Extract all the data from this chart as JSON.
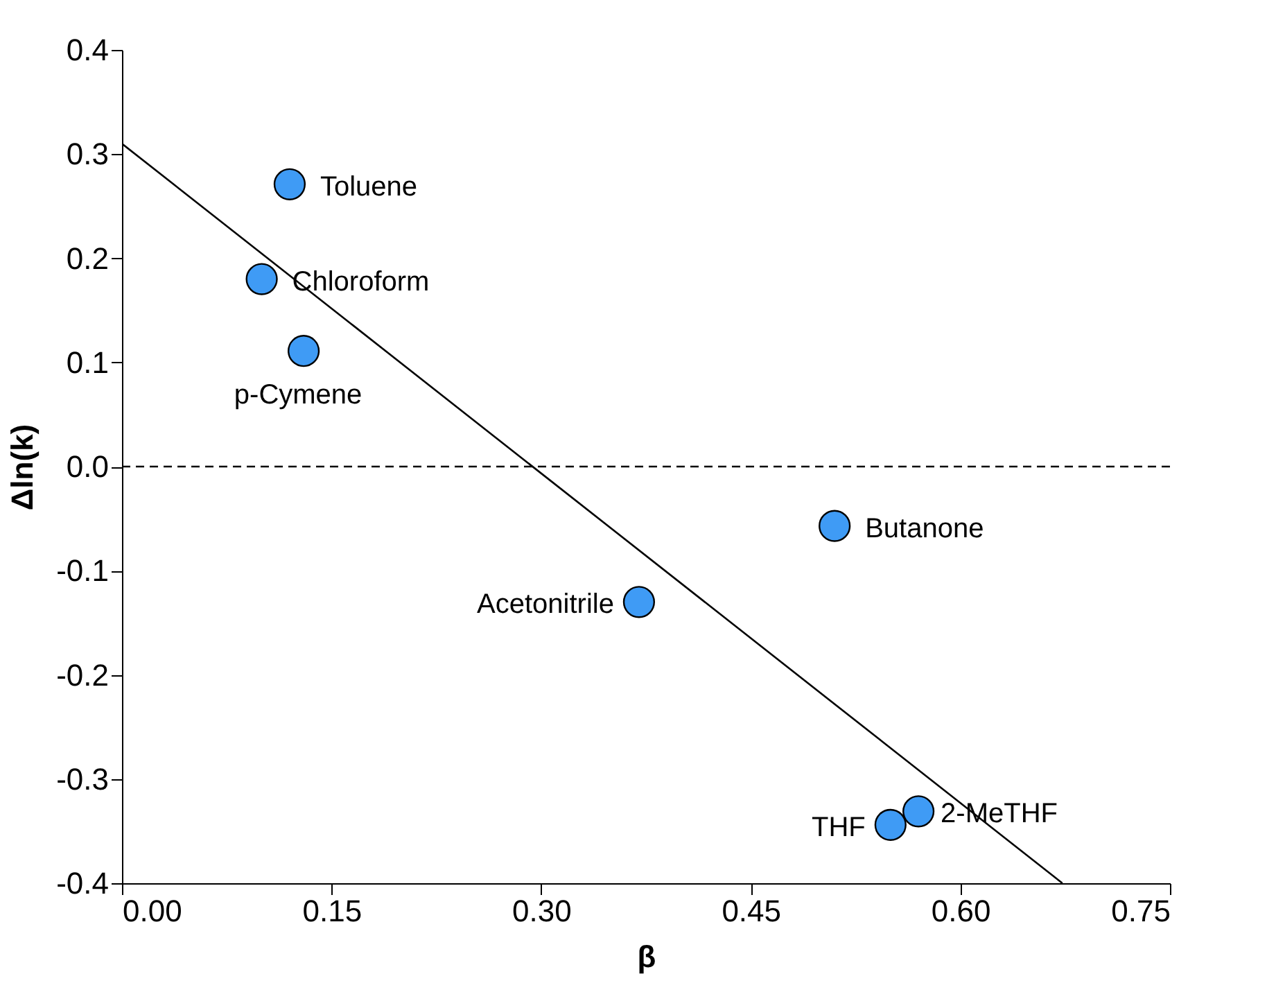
{
  "chart_data": {
    "type": "scatter",
    "xlabel": "β",
    "ylabel": "Δln(k)",
    "x": [
      0.12,
      0.1,
      0.13,
      0.37,
      0.51,
      0.55,
      0.57
    ],
    "series": [
      {
        "type": "scatter",
        "color": "#3f9bf5",
        "marker": "circle",
        "values": [
          0.271,
          0.18,
          0.111,
          -0.13,
          -0.057,
          -0.344,
          -0.331
        ]
      },
      {
        "type": "line",
        "line_style": "solid",
        "color": "#000000",
        "x": [
          0,
          0.673
        ],
        "values": [
          0.31,
          -0.4
        ]
      }
    ],
    "annotations": [
      {
        "text": "Toluene",
        "x": 0.12,
        "y": 0.271
      },
      {
        "text": "Chloroform",
        "x": 0.1,
        "y": 0.18
      },
      {
        "text": "p-Cymene",
        "x": 0.13,
        "y": 0.111
      },
      {
        "text": "Acetonitrile",
        "x": 0.37,
        "y": -0.13
      },
      {
        "text": "Butanone",
        "x": 0.51,
        "y": -0.057
      },
      {
        "text": "THF",
        "x": 0.55,
        "y": -0.344
      },
      {
        "text": "2-MeTHF",
        "x": 0.57,
        "y": -0.331
      }
    ],
    "ref_lines": [
      {
        "axis": "y",
        "value": 0,
        "line_style": "dashed",
        "color": "#000000"
      }
    ],
    "xlim": [
      0,
      0.75
    ],
    "xticks": [
      {
        "value": 0,
        "label": "0.00"
      },
      {
        "value": 0.15,
        "label": "0.15"
      },
      {
        "value": 0.3,
        "label": "0.30"
      },
      {
        "value": 0.45,
        "label": "0.45"
      },
      {
        "value": 0.6,
        "label": "0.60"
      },
      {
        "value": 0.75,
        "label": "0.75"
      }
    ],
    "ylim": [
      -0.4,
      0.4
    ],
    "yticks": [
      {
        "value": -0.4,
        "label": "-0.4"
      },
      {
        "value": -0.3,
        "label": "-0.3"
      },
      {
        "value": -0.2,
        "label": "-0.2"
      },
      {
        "value": -0.1,
        "label": "-0.1"
      },
      {
        "value": 0,
        "label": "0.0"
      },
      {
        "value": 0.1,
        "label": "0.1"
      },
      {
        "value": 0.2,
        "label": "0.2"
      },
      {
        "value": 0.3,
        "label": "0.3"
      },
      {
        "value": 0.4,
        "label": "0.4"
      }
    ],
    "grid": false,
    "legend": false
  }
}
